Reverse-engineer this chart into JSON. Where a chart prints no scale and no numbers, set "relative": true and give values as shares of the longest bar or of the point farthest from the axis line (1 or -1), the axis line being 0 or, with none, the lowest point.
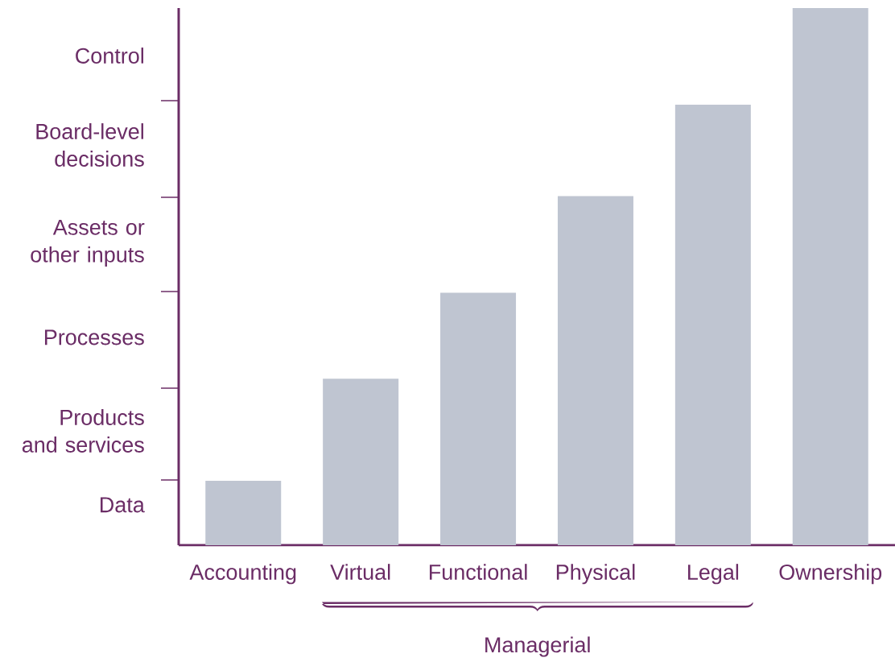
{
  "chart_data": {
    "type": "bar",
    "relative": true,
    "categories": [
      "Accounting",
      "Virtual",
      "Functional",
      "Physical",
      "Legal",
      "Ownership"
    ],
    "values": [
      0.12,
      0.31,
      0.47,
      0.65,
      0.82,
      1
    ],
    "color": "#bfc5d1",
    "annotations": [
      "Data",
      "Products and services",
      "Processes",
      "Assets or other inputs",
      "Board-level decisions",
      "Control",
      "Managerial"
    ]
  }
}
